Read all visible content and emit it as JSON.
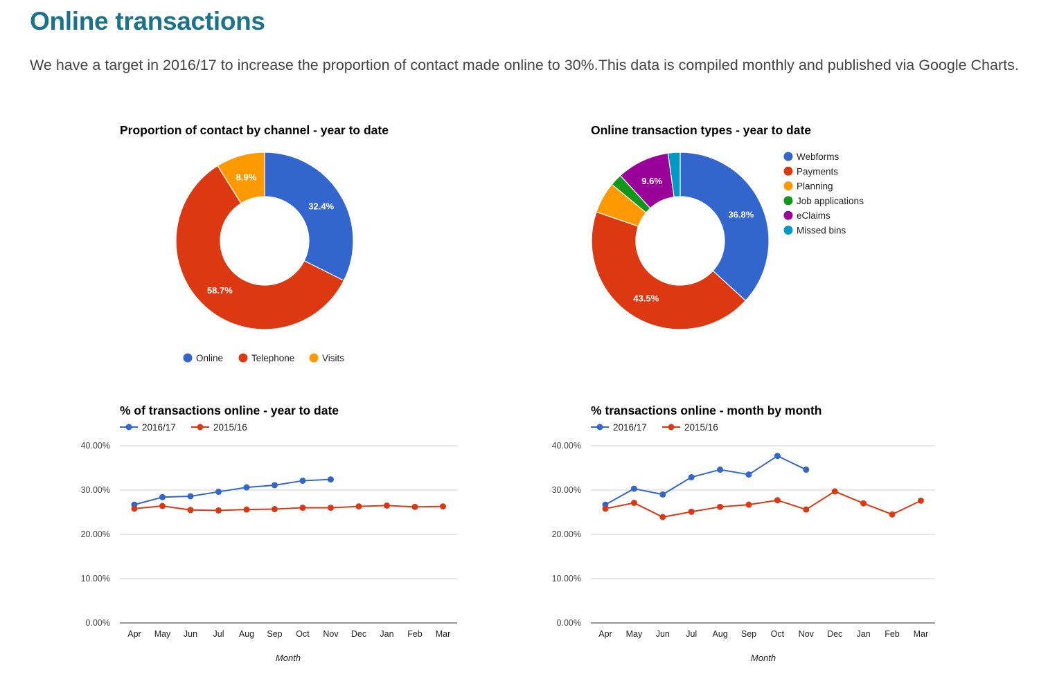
{
  "header": {
    "title": "Online transactions",
    "intro": "We have a target in 2016/17 to increase the proportion of contact made online to 30%.This data is compiled monthly and published via Google Charts."
  },
  "colors": {
    "heading": "#1a7389",
    "blue": "#3366cc",
    "red": "#dc3912",
    "orange": "#ff9900",
    "green": "#109618",
    "purple": "#990099",
    "teal": "#0099c6"
  },
  "chart_data": [
    {
      "type": "pie",
      "donut": true,
      "title": "Proportion of contact by channel - year to date",
      "legend_position": "bottom",
      "slices": [
        {
          "label": "Online",
          "value": 32.4,
          "display": "32.4%",
          "color": "#3366cc"
        },
        {
          "label": "Telephone",
          "value": 58.7,
          "display": "58.7%",
          "color": "#dc3912"
        },
        {
          "label": "Visits",
          "value": 8.9,
          "display": "8.9%",
          "color": "#ff9900"
        }
      ]
    },
    {
      "type": "pie",
      "donut": true,
      "title": "Online transaction types - year to date",
      "legend_position": "right",
      "slices": [
        {
          "label": "Webforms",
          "value": 36.8,
          "display": "36.8%",
          "color": "#3366cc"
        },
        {
          "label": "Payments",
          "value": 43.5,
          "display": "43.5%",
          "color": "#dc3912"
        },
        {
          "label": "Planning",
          "value": 5.7,
          "display": "",
          "color": "#ff9900"
        },
        {
          "label": "Job applications",
          "value": 2.2,
          "display": "",
          "color": "#109618"
        },
        {
          "label": "eClaims",
          "value": 9.6,
          "display": "9.6%",
          "color": "#990099"
        },
        {
          "label": "Missed bins",
          "value": 2.2,
          "display": "",
          "color": "#0099c6"
        }
      ]
    },
    {
      "type": "line",
      "title": "% of transactions online - year to date",
      "xlabel": "Month",
      "ylabel": "",
      "ylim": [
        0,
        40
      ],
      "yticks": [
        "0.00%",
        "10.00%",
        "20.00%",
        "30.00%",
        "40.00%"
      ],
      "grid": true,
      "legend_position": "top",
      "categories": [
        "Apr",
        "May",
        "Jun",
        "Jul",
        "Aug",
        "Sep",
        "Oct",
        "Nov",
        "Dec",
        "Jan",
        "Feb",
        "Mar"
      ],
      "series": [
        {
          "name": "2016/17",
          "color": "#3366cc",
          "values": [
            26.7,
            28.4,
            28.6,
            29.6,
            30.6,
            31.1,
            32.1,
            32.4,
            null,
            null,
            null,
            null
          ]
        },
        {
          "name": "2015/16",
          "color": "#dc3912",
          "values": [
            25.8,
            26.4,
            25.5,
            25.4,
            25.6,
            25.7,
            26.0,
            26.0,
            26.3,
            26.5,
            26.2,
            26.3
          ]
        }
      ]
    },
    {
      "type": "line",
      "title": "% transactions online - month by month",
      "xlabel": "Month",
      "ylabel": "",
      "ylim": [
        0,
        40
      ],
      "yticks": [
        "0.00%",
        "10.00%",
        "20.00%",
        "30.00%",
        "40.00%"
      ],
      "grid": true,
      "legend_position": "top",
      "categories": [
        "Apr",
        "May",
        "Jun",
        "Jul",
        "Aug",
        "Sep",
        "Oct",
        "Nov",
        "Dec",
        "Jan",
        "Feb",
        "Mar"
      ],
      "series": [
        {
          "name": "2016/17",
          "color": "#3366cc",
          "values": [
            26.7,
            30.3,
            29.0,
            32.9,
            34.6,
            33.5,
            37.7,
            34.6,
            null,
            null,
            null,
            null
          ]
        },
        {
          "name": "2015/16",
          "color": "#dc3912",
          "values": [
            25.8,
            27.1,
            23.9,
            25.1,
            26.2,
            26.7,
            27.7,
            25.6,
            29.7,
            27.0,
            24.5,
            27.6
          ]
        }
      ]
    }
  ]
}
